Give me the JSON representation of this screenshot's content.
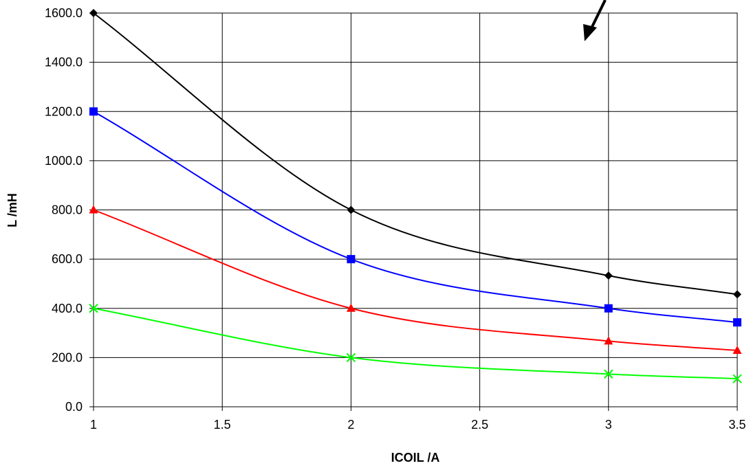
{
  "chart_data": {
    "type": "line",
    "title": "",
    "xlabel": "ICOIL /A",
    "ylabel": "L /mH",
    "xlim": [
      1,
      3.5
    ],
    "ylim": [
      0,
      1600
    ],
    "x_ticks": [
      "1",
      "1.5",
      "2",
      "2.5",
      "3",
      "3.5"
    ],
    "x_tick_values": [
      1,
      1.5,
      2,
      2.5,
      3,
      3.5
    ],
    "y_ticks": [
      "0.0",
      "200.0",
      "400.0",
      "600.0",
      "800.0",
      "1000.0",
      "1200.0",
      "1400.0",
      "1600.0"
    ],
    "y_tick_values": [
      0,
      200,
      400,
      600,
      800,
      1000,
      1200,
      1400,
      1600
    ],
    "grid": true,
    "legend": "none",
    "x": [
      1,
      2,
      3,
      3.5
    ],
    "series": [
      {
        "values": [
          1600,
          800,
          533,
          457
        ],
        "color": "#000000",
        "marker": "diamond"
      },
      {
        "values": [
          1200,
          600,
          400,
          343
        ],
        "color": "#0000ff",
        "marker": "square"
      },
      {
        "values": [
          800,
          400,
          267,
          229
        ],
        "color": "#ff0000",
        "marker": "triangle"
      },
      {
        "values": [
          400,
          200,
          133,
          114
        ],
        "color": "#00ff00",
        "marker": "x"
      }
    ],
    "annotations": [
      {
        "kind": "arrow",
        "text": ""
      }
    ]
  }
}
